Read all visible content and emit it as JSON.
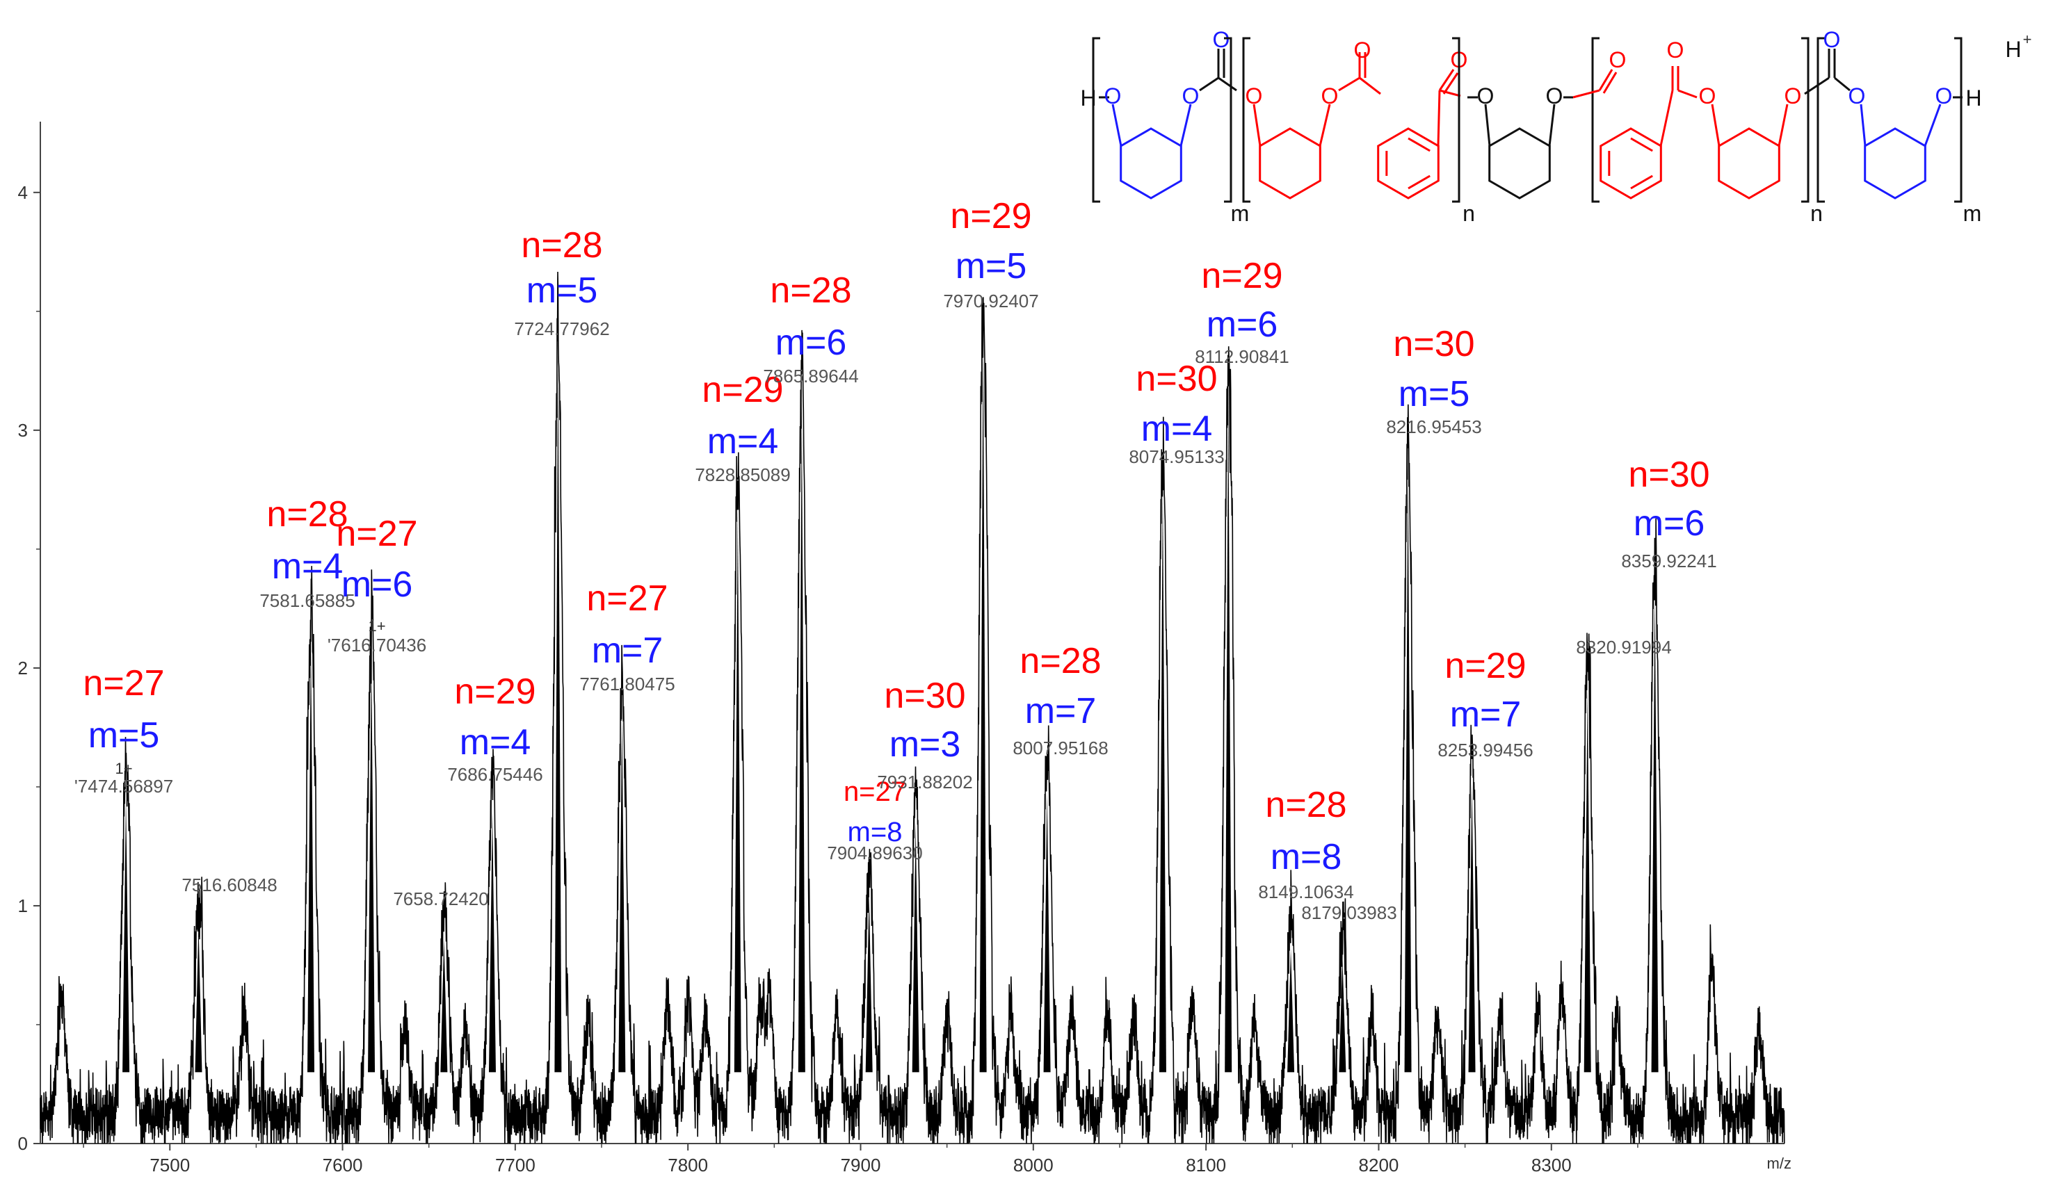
{
  "chart_data": {
    "type": "line",
    "title": "",
    "xlabel": "m/z",
    "ylabel": "",
    "xlim": [
      7425,
      8435
    ],
    "ylim": [
      0,
      4.4
    ],
    "xticks": [
      "7500",
      "7600",
      "7700",
      "7800",
      "7900",
      "8000",
      "8100",
      "8200",
      "8300"
    ],
    "yticks": [
      "0",
      "1",
      "2",
      "3",
      "4"
    ],
    "peaks": [
      {
        "mz": 7474.56897,
        "intensity": 1.45,
        "label": "'7474.56897",
        "charge": "1+",
        "n": "n=27",
        "m": "m=5"
      },
      {
        "mz": 7516.60848,
        "intensity": 0.92,
        "label": "7516.60848"
      },
      {
        "mz": 7581.65885,
        "intensity": 2.13,
        "label": "7581.65885",
        "n": "n=28",
        "m": "m=4"
      },
      {
        "mz": 7616.70436,
        "intensity": 2.06,
        "label": "'7616.70436",
        "charge": "1+",
        "n": "n=27",
        "m": "m=6"
      },
      {
        "mz": 7658.7242,
        "intensity": 0.86,
        "label": "7658.72420"
      },
      {
        "mz": 7686.75446,
        "intensity": 1.4,
        "label": "7686.75446",
        "n": "n=29",
        "m": "m=4"
      },
      {
        "mz": 7724.77962,
        "intensity": 3.32,
        "label": "7724.77962",
        "n": "n=28",
        "m": "m=5"
      },
      {
        "mz": 7761.80475,
        "intensity": 1.8,
        "label": "7761.80475",
        "n": "n=27",
        "m": "m=7"
      },
      {
        "mz": 7828.85089,
        "intensity": 2.68,
        "label": "7828.85089",
        "n": "n=29",
        "m": "m=4"
      },
      {
        "mz": 7865.89644,
        "intensity": 3.12,
        "label": "7865.89644",
        "n": "n=28",
        "m": "m=6"
      },
      {
        "mz": 7904.8963,
        "intensity": 1.05,
        "label": "7904.89630",
        "n": "n=27",
        "m": "m=8",
        "small": true
      },
      {
        "mz": 7931.88202,
        "intensity": 1.35,
        "label": "7931.88202",
        "n": "n=30",
        "m": "m=3"
      },
      {
        "mz": 7970.92407,
        "intensity": 3.43,
        "label": "7970.92407",
        "n": "n=29",
        "m": "m=5"
      },
      {
        "mz": 8007.95168,
        "intensity": 1.48,
        "label": "8007.95168",
        "n": "n=28",
        "m": "m=7"
      },
      {
        "mz": 8074.95133,
        "intensity": 2.78,
        "label": "8074.95133",
        "n": "n=30",
        "m": "m=4"
      },
      {
        "mz": 8112.90841,
        "intensity": 3.18,
        "label": "8112.90841",
        "n": "n=29",
        "m": "m=6"
      },
      {
        "mz": 8149.10634,
        "intensity": 0.82,
        "label": "8149.10634",
        "n": "n=28",
        "m": "m=8"
      },
      {
        "mz": 8179.03983,
        "intensity": 0.78,
        "label": "8179.03983"
      },
      {
        "mz": 8216.95453,
        "intensity": 2.85,
        "label": "8216.95453",
        "n": "n=30",
        "m": "m=5"
      },
      {
        "mz": 8253.99456,
        "intensity": 1.52,
        "label": "8253.99456",
        "n": "n=29",
        "m": "m=7"
      },
      {
        "mz": 8320.91994,
        "intensity": 1.91,
        "label": "8320.91994"
      },
      {
        "mz": 8359.92241,
        "intensity": 2.32,
        "label": "8359.92241",
        "n": "n=30",
        "m": "m=6"
      }
    ],
    "minor_peaks": [
      {
        "mz": 7437,
        "intensity": 0.52
      },
      {
        "mz": 7543,
        "intensity": 0.42
      },
      {
        "mz": 7636,
        "intensity": 0.38
      },
      {
        "mz": 7671,
        "intensity": 0.36
      },
      {
        "mz": 7742,
        "intensity": 0.44
      },
      {
        "mz": 7788,
        "intensity": 0.52
      },
      {
        "mz": 7800,
        "intensity": 0.48
      },
      {
        "mz": 7810,
        "intensity": 0.4
      },
      {
        "mz": 7842,
        "intensity": 0.46
      },
      {
        "mz": 7847,
        "intensity": 0.48
      },
      {
        "mz": 7886,
        "intensity": 0.42
      },
      {
        "mz": 7950,
        "intensity": 0.45
      },
      {
        "mz": 7987,
        "intensity": 0.42
      },
      {
        "mz": 8022,
        "intensity": 0.48
      },
      {
        "mz": 8043,
        "intensity": 0.4
      },
      {
        "mz": 8058,
        "intensity": 0.44
      },
      {
        "mz": 8092,
        "intensity": 0.46
      },
      {
        "mz": 8128,
        "intensity": 0.42
      },
      {
        "mz": 8196,
        "intensity": 0.42
      },
      {
        "mz": 8234,
        "intensity": 0.44
      },
      {
        "mz": 8270,
        "intensity": 0.4
      },
      {
        "mz": 8292,
        "intensity": 0.46
      },
      {
        "mz": 8306,
        "intensity": 0.52
      },
      {
        "mz": 8338,
        "intensity": 0.42
      },
      {
        "mz": 8393,
        "intensity": 0.64
      },
      {
        "mz": 8420,
        "intensity": 0.38
      }
    ],
    "structure": {
      "h_left": "H",
      "h_right": "H",
      "h_plus": "H",
      "h_plus_charge": "+",
      "subscripts": [
        "m",
        "n",
        "n",
        "m"
      ],
      "oxygen": "O"
    }
  },
  "colors": {
    "spectrum": "#000000",
    "n_label": "#ff0000",
    "m_label": "#1a1aff",
    "structure_red": "#ff0000",
    "structure_blue": "#1a1aff",
    "structure_black": "#111111",
    "peak_label": "#555555"
  }
}
